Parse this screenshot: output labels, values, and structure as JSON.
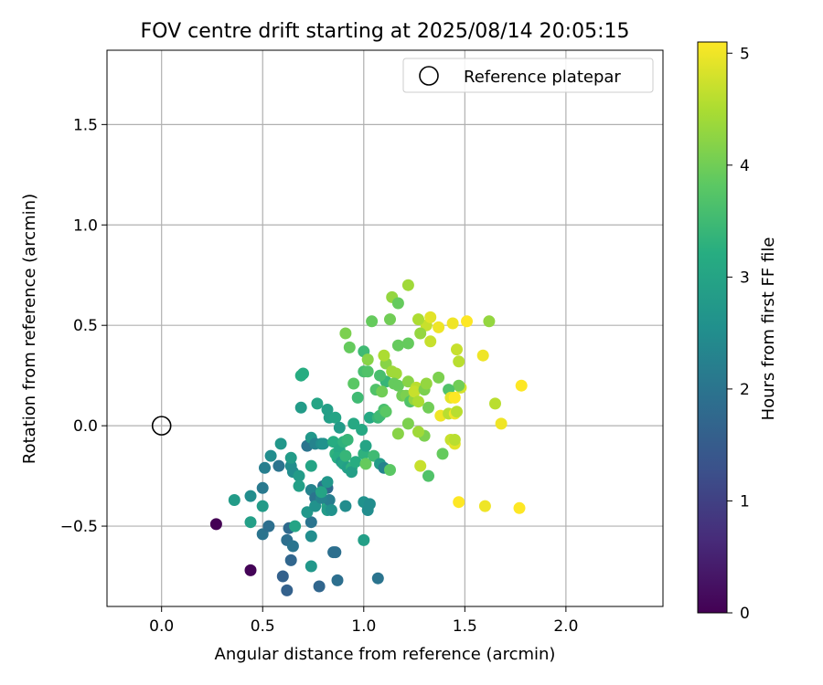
{
  "chart_data": {
    "type": "scatter",
    "title": "FOV centre drift starting at 2025/08/14 20:05:15",
    "xlabel": "Angular distance from reference (arcmin)",
    "ylabel": "Rotation from reference (arcmin)",
    "xlim": [
      -0.27,
      2.48
    ],
    "ylim": [
      -0.9,
      1.87
    ],
    "xticks": [
      0.0,
      0.5,
      1.0,
      1.5,
      2.0
    ],
    "xtick_labels": [
      "0.0",
      "0.5",
      "1.0",
      "1.5",
      "2.0"
    ],
    "yticks": [
      -0.5,
      0.0,
      0.5,
      1.0,
      1.5
    ],
    "ytick_labels": [
      "−0.5",
      "0.0",
      "0.5",
      "1.0",
      "1.5"
    ],
    "grid": true,
    "legend": {
      "placement": "top-right",
      "entries": [
        "Reference platepar"
      ]
    },
    "reference_point": {
      "x": 0.0,
      "y": 0.0,
      "marker": "hollow-circle",
      "label": "Reference platepar"
    },
    "colorbar": {
      "label": "Hours from first FF file",
      "min": 0,
      "max": 5.1,
      "ticks": [
        0,
        1,
        2,
        3,
        4,
        5
      ],
      "tick_labels": [
        "0",
        "1",
        "2",
        "3",
        "4",
        "5"
      ],
      "colormap": "viridis"
    },
    "points": [
      {
        "x": 0.27,
        "y": -0.49,
        "c": 0.0
      },
      {
        "x": 0.44,
        "y": -0.72,
        "c": 0.05
      },
      {
        "x": 0.62,
        "y": -0.82,
        "c": 1.6
      },
      {
        "x": 0.6,
        "y": -0.75,
        "c": 1.6
      },
      {
        "x": 0.78,
        "y": -0.8,
        "c": 1.7
      },
      {
        "x": 0.87,
        "y": -0.77,
        "c": 1.9
      },
      {
        "x": 1.07,
        "y": -0.76,
        "c": 2.0
      },
      {
        "x": 0.64,
        "y": -0.67,
        "c": 1.7
      },
      {
        "x": 0.85,
        "y": -0.63,
        "c": 1.9
      },
      {
        "x": 0.86,
        "y": -0.63,
        "c": 1.9
      },
      {
        "x": 0.62,
        "y": -0.57,
        "c": 1.9
      },
      {
        "x": 0.65,
        "y": -0.6,
        "c": 2.0
      },
      {
        "x": 0.5,
        "y": -0.54,
        "c": 2.0
      },
      {
        "x": 0.53,
        "y": -0.5,
        "c": 1.9
      },
      {
        "x": 0.63,
        "y": -0.51,
        "c": 1.8
      },
      {
        "x": 0.44,
        "y": -0.35,
        "c": 2.5
      },
      {
        "x": 0.36,
        "y": -0.37,
        "c": 2.8
      },
      {
        "x": 0.44,
        "y": -0.48,
        "c": 2.9
      },
      {
        "x": 0.5,
        "y": -0.4,
        "c": 2.8
      },
      {
        "x": 0.66,
        "y": -0.5,
        "c": 3.0
      },
      {
        "x": 0.74,
        "y": -0.48,
        "c": 2.0
      },
      {
        "x": 0.74,
        "y": -0.55,
        "c": 2.5
      },
      {
        "x": 0.74,
        "y": -0.7,
        "c": 2.7
      },
      {
        "x": 1.0,
        "y": -0.57,
        "c": 2.9
      },
      {
        "x": 0.5,
        "y": -0.31,
        "c": 2.1
      },
      {
        "x": 0.51,
        "y": -0.21,
        "c": 2.2
      },
      {
        "x": 0.54,
        "y": -0.15,
        "c": 2.5
      },
      {
        "x": 0.58,
        "y": -0.2,
        "c": 2.0
      },
      {
        "x": 0.59,
        "y": -0.09,
        "c": 2.7
      },
      {
        "x": 0.64,
        "y": -0.2,
        "c": 2.5
      },
      {
        "x": 0.64,
        "y": -0.16,
        "c": 2.8
      },
      {
        "x": 0.65,
        "y": -0.23,
        "c": 2.5
      },
      {
        "x": 0.68,
        "y": -0.25,
        "c": 2.8
      },
      {
        "x": 0.68,
        "y": -0.3,
        "c": 2.9
      },
      {
        "x": 0.72,
        "y": -0.43,
        "c": 2.7
      },
      {
        "x": 0.74,
        "y": -0.32,
        "c": 2.3
      },
      {
        "x": 0.76,
        "y": -0.36,
        "c": 2.0
      },
      {
        "x": 0.8,
        "y": -0.3,
        "c": 1.9
      },
      {
        "x": 0.82,
        "y": -0.31,
        "c": 1.8
      },
      {
        "x": 0.76,
        "y": -0.4,
        "c": 2.6
      },
      {
        "x": 0.82,
        "y": -0.4,
        "c": 3.1
      },
      {
        "x": 0.82,
        "y": -0.42,
        "c": 2.8
      },
      {
        "x": 0.83,
        "y": -0.37,
        "c": 2.2
      },
      {
        "x": 0.79,
        "y": -0.36,
        "c": 2.3
      },
      {
        "x": 0.84,
        "y": -0.42,
        "c": 2.6
      },
      {
        "x": 0.82,
        "y": -0.28,
        "c": 2.7
      },
      {
        "x": 0.79,
        "y": -0.33,
        "c": 3.0
      },
      {
        "x": 0.91,
        "y": -0.4,
        "c": 2.5
      },
      {
        "x": 1.0,
        "y": -0.38,
        "c": 2.6
      },
      {
        "x": 1.02,
        "y": -0.42,
        "c": 2.5
      },
      {
        "x": 1.03,
        "y": -0.39,
        "c": 2.5
      },
      {
        "x": 0.72,
        "y": -0.1,
        "c": 2.0
      },
      {
        "x": 0.74,
        "y": -0.2,
        "c": 3.0
      },
      {
        "x": 0.74,
        "y": -0.06,
        "c": 2.7
      },
      {
        "x": 0.76,
        "y": -0.09,
        "c": 2.3
      },
      {
        "x": 0.79,
        "y": -0.09,
        "c": 2.5
      },
      {
        "x": 0.8,
        "y": -0.09,
        "c": 2.6
      },
      {
        "x": 0.77,
        "y": 0.11,
        "c": 3.0
      },
      {
        "x": 0.69,
        "y": 0.09,
        "c": 2.8
      },
      {
        "x": 0.69,
        "y": 0.25,
        "c": 3.2
      },
      {
        "x": 0.7,
        "y": 0.26,
        "c": 3.2
      },
      {
        "x": 0.82,
        "y": 0.08,
        "c": 2.9
      },
      {
        "x": 0.83,
        "y": 0.04,
        "c": 2.9
      },
      {
        "x": 0.86,
        "y": 0.04,
        "c": 3.0
      },
      {
        "x": 0.88,
        "y": -0.01,
        "c": 2.8
      },
      {
        "x": 0.85,
        "y": -0.08,
        "c": 3.2
      },
      {
        "x": 0.86,
        "y": -0.14,
        "c": 3.3
      },
      {
        "x": 0.88,
        "y": -0.12,
        "c": 3.1
      },
      {
        "x": 0.87,
        "y": -0.16,
        "c": 3.2
      },
      {
        "x": 0.89,
        "y": -0.18,
        "c": 2.8
      },
      {
        "x": 0.9,
        "y": -0.08,
        "c": 3.3
      },
      {
        "x": 0.92,
        "y": -0.07,
        "c": 3.4
      },
      {
        "x": 0.9,
        "y": -0.19,
        "c": 3.0
      },
      {
        "x": 0.91,
        "y": -0.15,
        "c": 3.4
      },
      {
        "x": 0.92,
        "y": -0.21,
        "c": 2.9
      },
      {
        "x": 0.94,
        "y": -0.21,
        "c": 3.3
      },
      {
        "x": 0.94,
        "y": -0.23,
        "c": 2.9
      },
      {
        "x": 0.96,
        "y": -0.18,
        "c": 3.2
      },
      {
        "x": 0.95,
        "y": 0.01,
        "c": 3.1
      },
      {
        "x": 0.97,
        "y": 0.14,
        "c": 3.5
      },
      {
        "x": 0.99,
        "y": -0.02,
        "c": 3.1
      },
      {
        "x": 1.0,
        "y": -0.14,
        "c": 3.3
      },
      {
        "x": 1.01,
        "y": -0.1,
        "c": 3.0
      },
      {
        "x": 1.01,
        "y": -0.19,
        "c": 3.9
      },
      {
        "x": 1.05,
        "y": -0.15,
        "c": 3.5
      },
      {
        "x": 1.08,
        "y": -0.19,
        "c": 2.8
      },
      {
        "x": 1.1,
        "y": -0.21,
        "c": 2.3
      },
      {
        "x": 1.13,
        "y": -0.22,
        "c": 3.8
      },
      {
        "x": 1.03,
        "y": 0.04,
        "c": 3.1
      },
      {
        "x": 1.07,
        "y": 0.04,
        "c": 3.4
      },
      {
        "x": 1.08,
        "y": 0.05,
        "c": 3.5
      },
      {
        "x": 1.1,
        "y": 0.08,
        "c": 3.6
      },
      {
        "x": 1.11,
        "y": 0.07,
        "c": 3.8
      },
      {
        "x": 1.11,
        "y": 0.22,
        "c": 3.4
      },
      {
        "x": 1.06,
        "y": 0.18,
        "c": 3.7
      },
      {
        "x": 1.08,
        "y": 0.25,
        "c": 3.6
      },
      {
        "x": 1.09,
        "y": 0.17,
        "c": 4.0
      },
      {
        "x": 1.11,
        "y": 0.31,
        "c": 4.2
      },
      {
        "x": 0.95,
        "y": 0.21,
        "c": 3.8
      },
      {
        "x": 0.93,
        "y": 0.39,
        "c": 3.9
      },
      {
        "x": 0.91,
        "y": 0.46,
        "c": 4.1
      },
      {
        "x": 1.0,
        "y": 0.37,
        "c": 3.5
      },
      {
        "x": 1.0,
        "y": 0.27,
        "c": 3.6
      },
      {
        "x": 1.02,
        "y": 0.27,
        "c": 3.7
      },
      {
        "x": 1.02,
        "y": 0.33,
        "c": 4.2
      },
      {
        "x": 1.04,
        "y": 0.52,
        "c": 3.9
      },
      {
        "x": 1.1,
        "y": 0.35,
        "c": 4.5
      },
      {
        "x": 1.13,
        "y": 0.53,
        "c": 4.0
      },
      {
        "x": 1.14,
        "y": 0.64,
        "c": 4.3
      },
      {
        "x": 1.17,
        "y": 0.61,
        "c": 3.9
      },
      {
        "x": 1.22,
        "y": 0.7,
        "c": 4.4
      },
      {
        "x": 1.17,
        "y": 0.4,
        "c": 3.9
      },
      {
        "x": 1.22,
        "y": 0.41,
        "c": 3.9
      },
      {
        "x": 1.14,
        "y": 0.27,
        "c": 4.4
      },
      {
        "x": 1.16,
        "y": 0.26,
        "c": 4.4
      },
      {
        "x": 1.15,
        "y": 0.21,
        "c": 3.9
      },
      {
        "x": 1.17,
        "y": 0.2,
        "c": 3.9
      },
      {
        "x": 1.19,
        "y": 0.15,
        "c": 4.0
      },
      {
        "x": 1.21,
        "y": 0.15,
        "c": 4.1
      },
      {
        "x": 1.22,
        "y": 0.22,
        "c": 4.2
      },
      {
        "x": 1.23,
        "y": 0.12,
        "c": 3.7
      },
      {
        "x": 1.25,
        "y": 0.13,
        "c": 4.3
      },
      {
        "x": 1.26,
        "y": 0.19,
        "c": 4.6
      },
      {
        "x": 1.25,
        "y": 0.17,
        "c": 4.7
      },
      {
        "x": 1.27,
        "y": 0.12,
        "c": 4.5
      },
      {
        "x": 1.3,
        "y": 0.18,
        "c": 4.1
      },
      {
        "x": 1.31,
        "y": 0.21,
        "c": 4.3
      },
      {
        "x": 1.31,
        "y": 0.5,
        "c": 4.7
      },
      {
        "x": 1.33,
        "y": 0.54,
        "c": 4.9
      },
      {
        "x": 1.33,
        "y": 0.42,
        "c": 4.7
      },
      {
        "x": 1.28,
        "y": 0.46,
        "c": 4.3
      },
      {
        "x": 1.27,
        "y": 0.53,
        "c": 4.5
      },
      {
        "x": 1.32,
        "y": 0.09,
        "c": 4.0
      },
      {
        "x": 1.37,
        "y": 0.24,
        "c": 4.1
      },
      {
        "x": 1.37,
        "y": 0.49,
        "c": 5.0
      },
      {
        "x": 1.44,
        "y": 0.51,
        "c": 5.0
      },
      {
        "x": 1.46,
        "y": 0.38,
        "c": 4.7
      },
      {
        "x": 1.47,
        "y": 0.32,
        "c": 4.6
      },
      {
        "x": 1.51,
        "y": 0.52,
        "c": 5.1
      },
      {
        "x": 1.62,
        "y": 0.52,
        "c": 4.3
      },
      {
        "x": 1.59,
        "y": 0.35,
        "c": 5.0
      },
      {
        "x": 1.48,
        "y": 0.19,
        "c": 4.8
      },
      {
        "x": 1.47,
        "y": 0.2,
        "c": 4.0
      },
      {
        "x": 1.42,
        "y": 0.18,
        "c": 3.7
      },
      {
        "x": 1.43,
        "y": 0.14,
        "c": 4.9
      },
      {
        "x": 1.45,
        "y": 0.14,
        "c": 5.1
      },
      {
        "x": 1.38,
        "y": 0.05,
        "c": 5.0
      },
      {
        "x": 1.42,
        "y": 0.06,
        "c": 4.6
      },
      {
        "x": 1.45,
        "y": 0.06,
        "c": 5.0
      },
      {
        "x": 1.46,
        "y": 0.07,
        "c": 4.6
      },
      {
        "x": 1.43,
        "y": -0.07,
        "c": 4.7
      },
      {
        "x": 1.45,
        "y": -0.09,
        "c": 4.9
      },
      {
        "x": 1.45,
        "y": -0.07,
        "c": 4.6
      },
      {
        "x": 1.39,
        "y": -0.14,
        "c": 3.9
      },
      {
        "x": 1.3,
        "y": -0.05,
        "c": 4.1
      },
      {
        "x": 1.27,
        "y": -0.03,
        "c": 4.4
      },
      {
        "x": 1.22,
        "y": 0.01,
        "c": 4.1
      },
      {
        "x": 1.17,
        "y": -0.04,
        "c": 4.2
      },
      {
        "x": 1.28,
        "y": -0.2,
        "c": 4.7
      },
      {
        "x": 1.32,
        "y": -0.25,
        "c": 3.7
      },
      {
        "x": 1.47,
        "y": -0.38,
        "c": 5.1
      },
      {
        "x": 1.6,
        "y": -0.4,
        "c": 5.0
      },
      {
        "x": 1.77,
        "y": -0.41,
        "c": 5.1
      },
      {
        "x": 1.65,
        "y": 0.11,
        "c": 4.6
      },
      {
        "x": 1.68,
        "y": 0.01,
        "c": 5.0
      },
      {
        "x": 1.78,
        "y": 0.2,
        "c": 5.1
      }
    ]
  }
}
